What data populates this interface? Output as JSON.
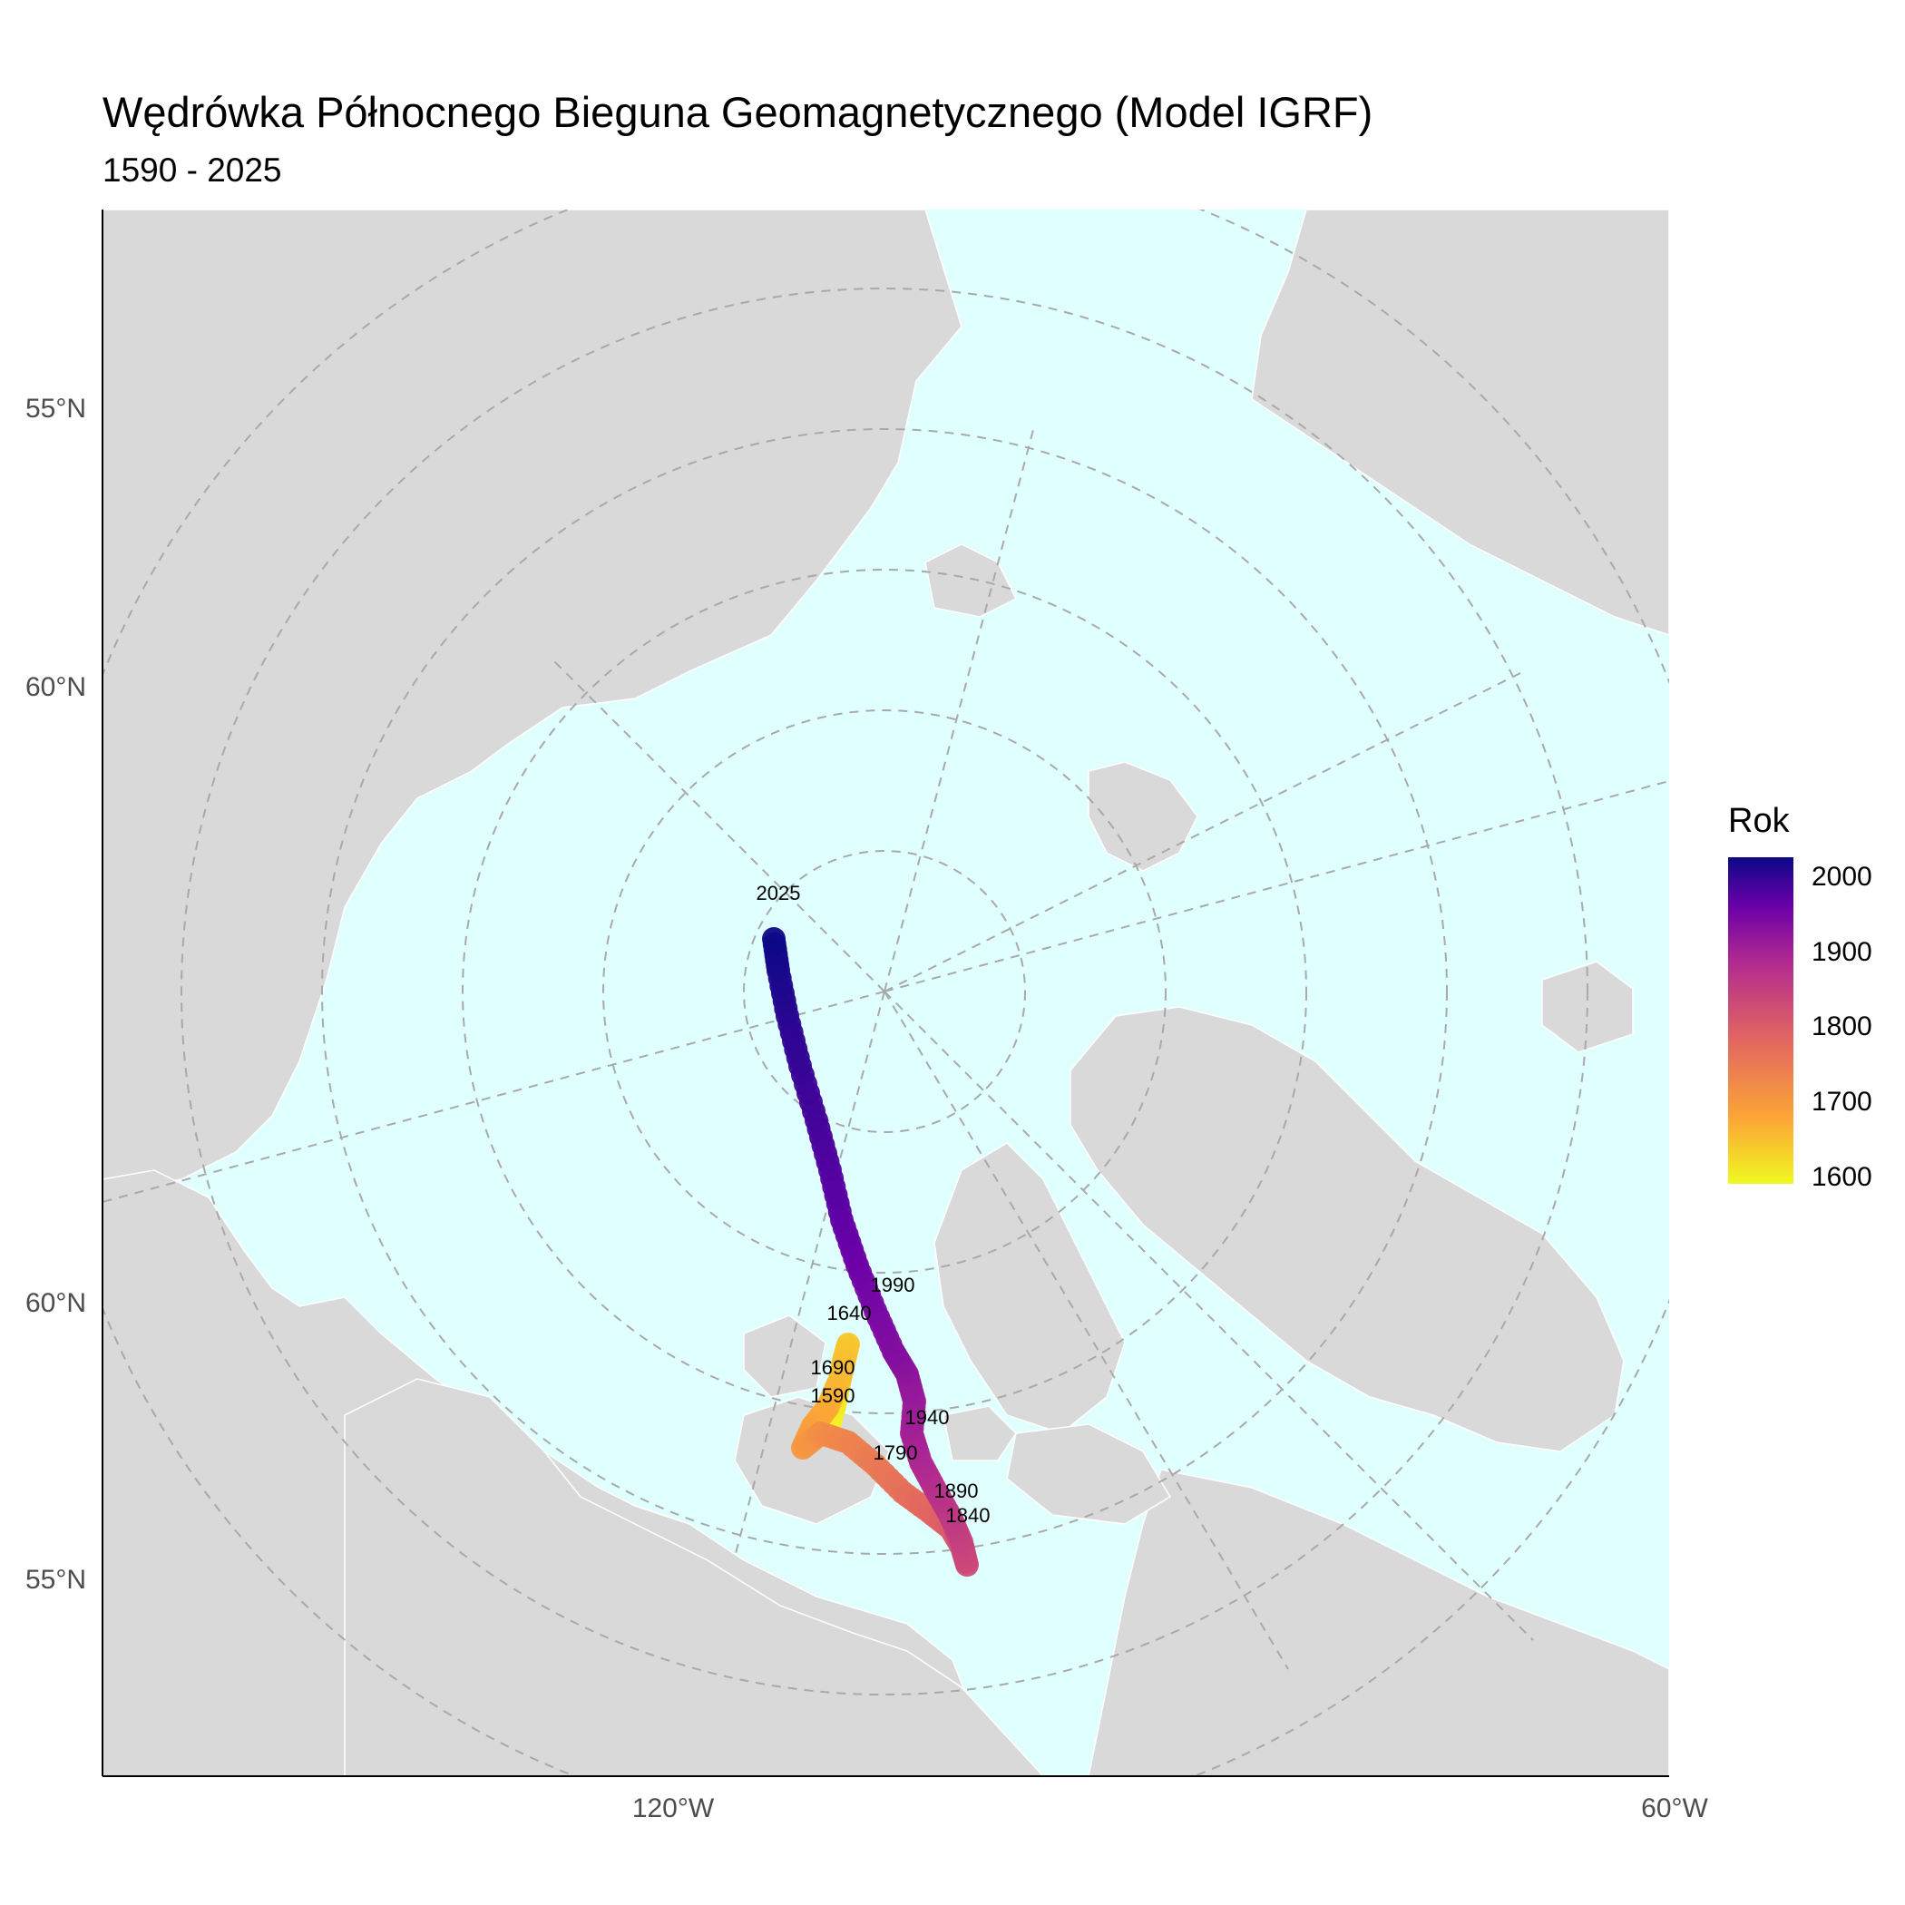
{
  "header": {
    "title": "Wędrówka Północnego Bieguna Geomagnetycznego (Model IGRF)",
    "subtitle": "1590 - 2025"
  },
  "axes": {
    "y_ticks": [
      "55°N",
      "60°N",
      "60°N",
      "55°N"
    ],
    "x_ticks": [
      "120°W",
      "60°W"
    ]
  },
  "legend": {
    "title": "Rok",
    "ticks": [
      "2000",
      "1900",
      "1800",
      "1700",
      "1600"
    ],
    "range": [
      1590,
      2025
    ],
    "colors": [
      "#f0f921",
      "#fca636",
      "#e16462",
      "#b12a90",
      "#6a00a8",
      "#0d0887"
    ]
  },
  "colors": {
    "ocean": "#e0ffff",
    "land": "#d9d9d9",
    "graticule": "#a9a9a9"
  },
  "chart_data": {
    "type": "path",
    "color_variable": "Rok",
    "year_labels": [
      "2025",
      "1990",
      "1940",
      "1890",
      "1840",
      "1790",
      "1690",
      "1640",
      "1590"
    ],
    "track": [
      {
        "year": 1590,
        "label": "1590"
      },
      {
        "year": 1640,
        "label": "1640"
      },
      {
        "year": 1690,
        "label": "1690"
      },
      {
        "year": 1790,
        "label": "1790"
      },
      {
        "year": 1840,
        "label": "1840"
      },
      {
        "year": 1890,
        "label": "1890"
      },
      {
        "year": 1940,
        "label": "1940"
      },
      {
        "year": 1990,
        "label": "1990"
      },
      {
        "year": 2025,
        "label": "2025"
      }
    ]
  }
}
